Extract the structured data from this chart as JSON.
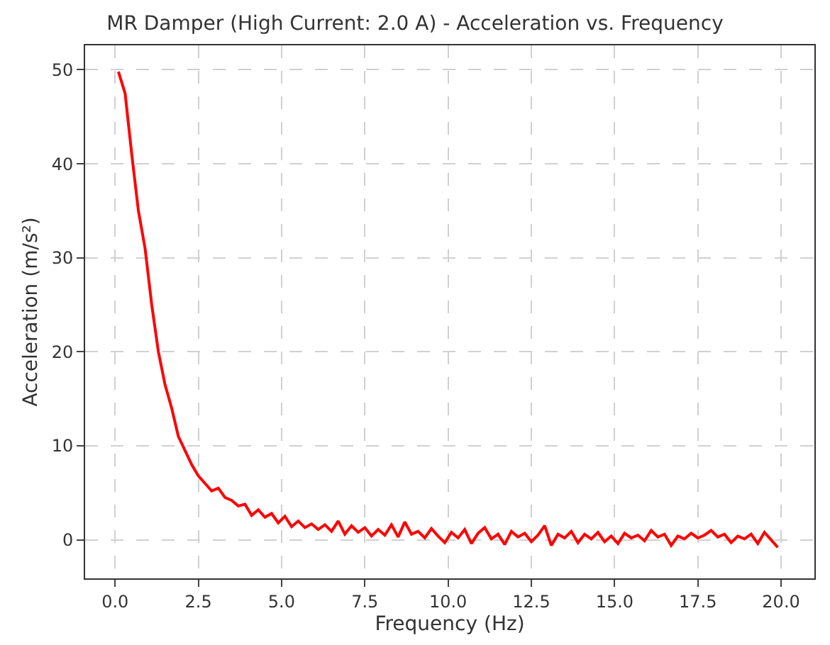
{
  "chart_data": {
    "type": "line",
    "title": "MR Damper (High Current: 2.0 A) - Acceleration vs. Frequency",
    "xlabel": "Frequency (Hz)",
    "ylabel": "Acceleration (m/s²)",
    "x": [
      0.1,
      0.3,
      0.5,
      0.7,
      0.9,
      1.1,
      1.3,
      1.5,
      1.7,
      1.9,
      2.1,
      2.3,
      2.5,
      2.7,
      2.9,
      3.1,
      3.3,
      3.5,
      3.7,
      3.9,
      4.1,
      4.3,
      4.5,
      4.7,
      4.9,
      5.1,
      5.3,
      5.5,
      5.7,
      5.9,
      6.1,
      6.3,
      6.5,
      6.7,
      6.9,
      7.1,
      7.3,
      7.5,
      7.7,
      7.9,
      8.1,
      8.3,
      8.5,
      8.7,
      8.9,
      9.1,
      9.3,
      9.5,
      9.7,
      9.9,
      10.1,
      10.3,
      10.5,
      10.7,
      10.9,
      11.1,
      11.3,
      11.5,
      11.7,
      11.9,
      12.1,
      12.3,
      12.5,
      12.7,
      12.9,
      13.1,
      13.3,
      13.5,
      13.7,
      13.9,
      14.1,
      14.3,
      14.5,
      14.7,
      14.9,
      15.1,
      15.3,
      15.5,
      15.7,
      15.9,
      16.1,
      16.3,
      16.5,
      16.7,
      16.9,
      17.1,
      17.3,
      17.5,
      17.7,
      17.9,
      18.1,
      18.3,
      18.5,
      18.7,
      18.9,
      19.1,
      19.3,
      19.5,
      19.7,
      19.9
    ],
    "series": [
      {
        "color": "#ff0000",
        "values": [
          49.8,
          47.5,
          41,
          35,
          31,
          25,
          20,
          16.5,
          14,
          11,
          9.5,
          8.0,
          6.8,
          6.0,
          5.2,
          5.5,
          4.5,
          4.2,
          3.6,
          3.8,
          2.6,
          3.2,
          2.4,
          2.8,
          1.8,
          2.5,
          1.4,
          2.0,
          1.3,
          1.7,
          1.1,
          1.6,
          0.9,
          2.0,
          0.6,
          1.5,
          0.8,
          1.3,
          0.4,
          1.1,
          0.5,
          1.6,
          0.3,
          1.9,
          0.6,
          0.9,
          0.2,
          1.2,
          0.4,
          -0.3,
          0.8,
          0.2,
          1.1,
          -0.4,
          0.7,
          1.3,
          0.1,
          0.6,
          -0.5,
          0.9,
          0.3,
          0.7,
          -0.2,
          0.5,
          1.5,
          -0.6,
          0.6,
          0.2,
          0.9,
          -0.3,
          0.6,
          0.1,
          0.8,
          -0.2,
          0.4,
          -0.4,
          0.7,
          0.2,
          0.5,
          -0.1,
          1.0,
          0.3,
          0.6,
          -0.6,
          0.4,
          0.1,
          0.7,
          0.2,
          0.5,
          1.0,
          0.3,
          0.6,
          -0.3,
          0.4,
          0.1,
          0.6,
          -0.4,
          0.8,
          0.0,
          -0.8
        ]
      }
    ],
    "xlim": [
      -0.9,
      21.0
    ],
    "ylim": [
      -4.1,
      52.6
    ],
    "xticks": [
      {
        "value": 0,
        "label": "0.0"
      },
      2.5,
      {
        "value": 5,
        "label": "5.0"
      },
      7.5,
      {
        "value": 10,
        "label": "10.0"
      },
      12.5,
      {
        "value": 15,
        "label": "15.0"
      },
      17.5,
      {
        "value": 20,
        "label": "20.0"
      }
    ],
    "yticks": [
      0,
      10,
      20,
      30,
      40,
      50
    ],
    "grid": true,
    "line_style": "solid"
  }
}
